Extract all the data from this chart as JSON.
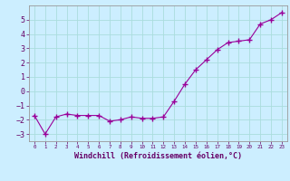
{
  "x": [
    0,
    1,
    2,
    3,
    4,
    5,
    6,
    7,
    8,
    9,
    10,
    11,
    12,
    13,
    14,
    15,
    16,
    17,
    18,
    19,
    20,
    21,
    22,
    23
  ],
  "y": [
    -1.7,
    -3.0,
    -1.8,
    -1.6,
    -1.7,
    -1.7,
    -1.7,
    -2.1,
    -2.0,
    -1.8,
    -1.9,
    -1.9,
    -1.8,
    -0.7,
    0.5,
    1.5,
    2.2,
    2.9,
    3.4,
    3.5,
    3.6,
    4.7,
    5.0,
    5.5
  ],
  "line_color": "#990099",
  "marker": "+",
  "background_color": "#cceeff",
  "grid_color": "#aadddd",
  "xlabel": "Windchill (Refroidissement éolien,°C)",
  "xlim": [
    -0.5,
    23.5
  ],
  "ylim": [
    -3.5,
    6.0
  ],
  "yticks": [
    -3,
    -2,
    -1,
    0,
    1,
    2,
    3,
    4,
    5
  ],
  "xtick_labels": [
    "0",
    "1",
    "2",
    "3",
    "4",
    "5",
    "6",
    "7",
    "8",
    "9",
    "10",
    "11",
    "12",
    "13",
    "14",
    "15",
    "16",
    "17",
    "18",
    "19",
    "20",
    "21",
    "22",
    "23"
  ],
  "tick_color": "#660066",
  "label_color": "#660066",
  "spine_color": "#999999",
  "font": "monospace",
  "ytick_fontsize": 6.0,
  "xtick_fontsize": 4.2,
  "xlabel_fontsize": 6.0
}
